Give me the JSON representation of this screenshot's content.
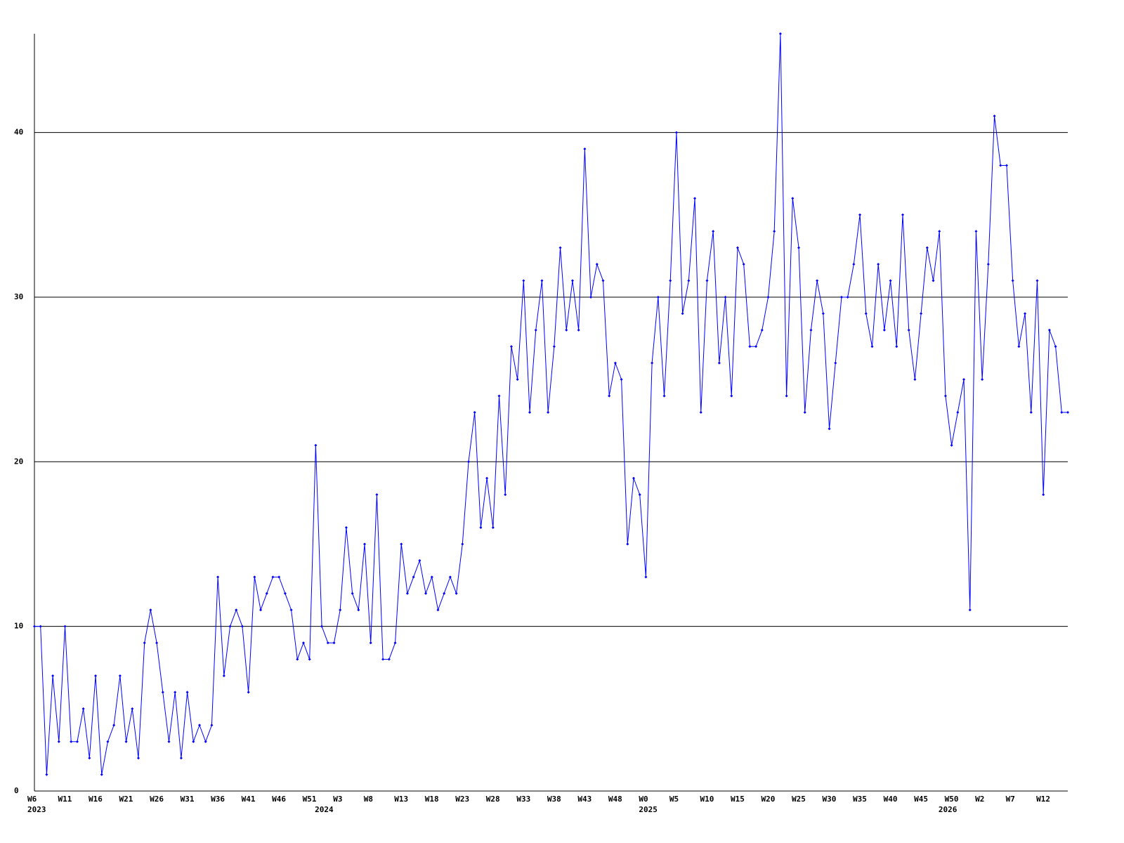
{
  "chart_data": {
    "type": "line",
    "categories": [
      "W6",
      null,
      null,
      null,
      null,
      "W11",
      null,
      null,
      null,
      null,
      "W16",
      null,
      null,
      null,
      null,
      "W21",
      null,
      null,
      null,
      null,
      "W26",
      null,
      null,
      null,
      null,
      "W31",
      null,
      null,
      null,
      null,
      "W36",
      null,
      null,
      null,
      null,
      "W41",
      null,
      null,
      null,
      null,
      "W46",
      null,
      null,
      null,
      null,
      "W51",
      null,
      null,
      null,
      null,
      "W3",
      null,
      null,
      null,
      null,
      "W8",
      null,
      null,
      null,
      null,
      "W13",
      null,
      null,
      null,
      null,
      "W18",
      null,
      null,
      null,
      null,
      "W23",
      null,
      null,
      null,
      null,
      "W28",
      null,
      null,
      null,
      null,
      "W33",
      null,
      null,
      null,
      null,
      "W38",
      null,
      null,
      null,
      null,
      "W43",
      null,
      null,
      null,
      null,
      "W48",
      null,
      null,
      null,
      null,
      "W0",
      null,
      null,
      null,
      null,
      "W5",
      null,
      null,
      null,
      null,
      "W10",
      null,
      null,
      null,
      null,
      "W15",
      null,
      null,
      null,
      null,
      "W20",
      null,
      null,
      null,
      null,
      "W25",
      null,
      null,
      null,
      null,
      "W30",
      null,
      null,
      null,
      null,
      "W35",
      null,
      null,
      null,
      null,
      "W40",
      null,
      null,
      null,
      null,
      "W45",
      null,
      null,
      null,
      null,
      "W50",
      null,
      null,
      null,
      null,
      "W2",
      null,
      null,
      null,
      null,
      "W7",
      null,
      null,
      null,
      null,
      "W12",
      null,
      null,
      null,
      null
    ],
    "category_years": [
      "2023",
      null,
      null,
      null,
      null,
      null,
      null,
      null,
      null,
      null,
      null,
      null,
      null,
      null,
      null,
      null,
      null,
      null,
      null,
      null,
      null,
      null,
      null,
      null,
      null,
      null,
      null,
      null,
      null,
      null,
      null,
      null,
      null,
      null,
      null,
      null,
      null,
      null,
      null,
      null,
      null,
      null,
      null,
      null,
      null,
      null,
      null,
      "2024",
      null,
      null,
      null,
      null,
      null,
      null,
      null,
      null,
      null,
      null,
      null,
      null,
      null,
      null,
      null,
      null,
      null,
      null,
      null,
      null,
      null,
      null,
      null,
      null,
      null,
      null,
      null,
      null,
      null,
      null,
      null,
      null,
      null,
      null,
      null,
      null,
      null,
      null,
      null,
      null,
      null,
      null,
      null,
      null,
      null,
      null,
      null,
      null,
      null,
      null,
      null,
      null,
      "2025",
      null,
      null,
      null,
      null,
      null,
      null,
      null,
      null,
      null,
      null,
      null,
      null,
      null,
      null,
      null,
      null,
      null,
      null,
      null,
      null,
      null,
      null,
      null,
      null,
      null,
      null,
      null,
      null,
      null,
      null,
      null,
      null,
      null,
      null,
      null,
      null,
      null,
      null,
      null,
      null,
      null,
      null,
      null,
      null,
      null,
      null,
      null,
      null,
      "2026",
      null,
      null,
      null,
      null,
      null,
      null,
      null,
      null,
      null,
      null,
      null,
      null,
      null,
      null,
      null,
      null
    ],
    "series": [
      {
        "color": "#0000ff",
        "values": [
          10,
          10,
          1,
          7,
          3,
          10,
          3,
          3,
          5,
          2,
          7,
          1,
          3,
          4,
          7,
          3,
          5,
          2,
          9,
          11,
          9,
          6,
          3,
          6,
          2,
          6,
          3,
          4,
          3,
          4,
          13,
          7,
          10,
          11,
          10,
          6,
          13,
          11,
          12,
          13,
          13,
          12,
          11,
          8,
          9,
          8,
          21,
          10,
          9,
          9,
          11,
          16,
          12,
          11,
          15,
          9,
          18,
          8,
          8,
          9,
          15,
          12,
          13,
          14,
          12,
          13,
          11,
          12,
          13,
          12,
          15,
          20,
          23,
          16,
          19,
          16,
          24,
          18,
          27,
          25,
          31,
          23,
          28,
          31,
          23,
          27,
          33,
          28,
          31,
          28,
          39,
          30,
          32,
          31,
          24,
          26,
          25,
          15,
          19,
          18,
          13,
          26,
          30,
          24,
          31,
          40,
          29,
          31,
          36,
          23,
          31,
          34,
          26,
          30,
          24,
          33,
          32,
          27,
          27,
          28,
          30,
          34,
          46,
          24,
          36,
          33,
          23,
          28,
          31,
          29,
          22,
          26,
          30,
          30,
          32,
          35,
          29,
          27,
          32,
          28,
          31,
          27,
          35,
          28,
          25,
          29,
          33,
          31,
          34,
          24,
          21,
          23,
          25,
          11,
          34,
          25,
          32,
          41,
          38,
          38,
          31,
          27,
          29,
          23,
          31,
          18,
          28,
          27,
          23,
          23
        ]
      }
    ],
    "ylim": [
      0,
      46
    ],
    "yticks": [
      0,
      10,
      20,
      30,
      40
    ],
    "grid": true
  }
}
